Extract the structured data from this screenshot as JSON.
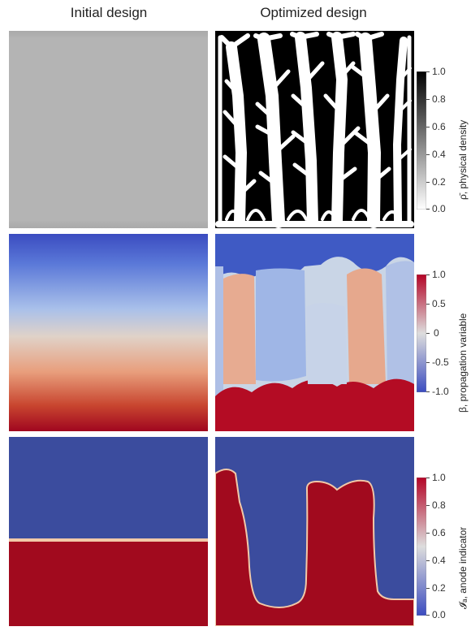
{
  "columns": {
    "left_title": "Initial design",
    "right_title": "Optimized design"
  },
  "rows": [
    {
      "colorbar_label": "ρ̄, physical density",
      "ticks": [
        "1.0",
        "0.8",
        "0.6",
        "0.4",
        "0.2",
        "0.0"
      ],
      "colormap": "grayscale",
      "colors": {
        "high": "#000000",
        "low": "#ffffff",
        "initial_fill": "#b3b3b3"
      }
    },
    {
      "colorbar_label": "β,  propagation variable",
      "ticks": [
        "1.0",
        "0.5",
        "0",
        "-0.5",
        "-1.0"
      ],
      "colormap": "blue-red diverging",
      "colors": {
        "high": "#b40426",
        "mid": "#dddddd",
        "low": "#3b4cc0"
      }
    },
    {
      "colorbar_label": "𝓘ₐ,  anode indicator",
      "ticks": [
        "1.0",
        "0.8",
        "0.6",
        "0.4",
        "0.2",
        "0.0"
      ],
      "colormap": "blue-red diverging",
      "colors": {
        "high": "#b40426",
        "mid": "#dddddd",
        "low": "#3b4cc0"
      }
    }
  ]
}
